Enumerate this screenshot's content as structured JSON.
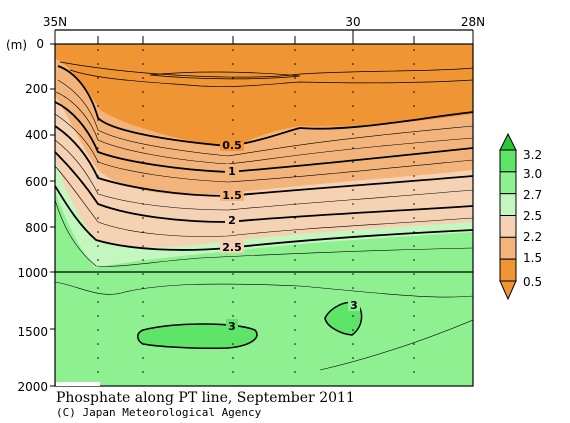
{
  "chart_data": {
    "type": "heatmap",
    "variable": "Phosphate",
    "title": "Phosphate along PT line, September 2011",
    "credit": "(C) Japan Meteorological Agency",
    "x_axis": {
      "ticks": [
        {
          "label": "35N",
          "lat": 35
        },
        {
          "label": "30",
          "lat": 30
        },
        {
          "label": "28N",
          "lat": 28
        }
      ],
      "range": [
        35,
        28
      ]
    },
    "y_axis": {
      "unit_label": "(m)",
      "ticks": [
        {
          "label": "0",
          "depth": 0
        },
        {
          "label": "200",
          "depth": 200
        },
        {
          "label": "400",
          "depth": 400
        },
        {
          "label": "600",
          "depth": 600
        },
        {
          "label": "800",
          "depth": 800
        },
        {
          "label": "1000",
          "depth": 1000
        },
        {
          "label": "1500",
          "depth": 1500
        },
        {
          "label": "2000",
          "depth": 2000
        }
      ],
      "scale_break_depth": 1000
    },
    "colorbar": {
      "levels": [
        "3.2",
        "3.0",
        "2.7",
        "2.5",
        "2.2",
        "1.5",
        "0.5"
      ],
      "colors": [
        "#27c83a",
        "#5fe46a",
        "#8ef090",
        "#c4f7c0",
        "#f5d2b4",
        "#f2b47a",
        "#f09533"
      ]
    },
    "contour_labels": [
      {
        "text": "0.5",
        "lat": 33.2,
        "depth": 450
      },
      {
        "text": "1",
        "lat": 33.2,
        "depth": 570
      },
      {
        "text": "1.5",
        "lat": 33.2,
        "depth": 700
      },
      {
        "text": "2",
        "lat": 33.2,
        "depth": 820
      },
      {
        "text": "2.5",
        "lat": 33.2,
        "depth": 930
      },
      {
        "text": "3",
        "lat": 33.2,
        "depth": 1500
      },
      {
        "text": "3",
        "lat": 30.0,
        "depth": 1320
      }
    ]
  }
}
